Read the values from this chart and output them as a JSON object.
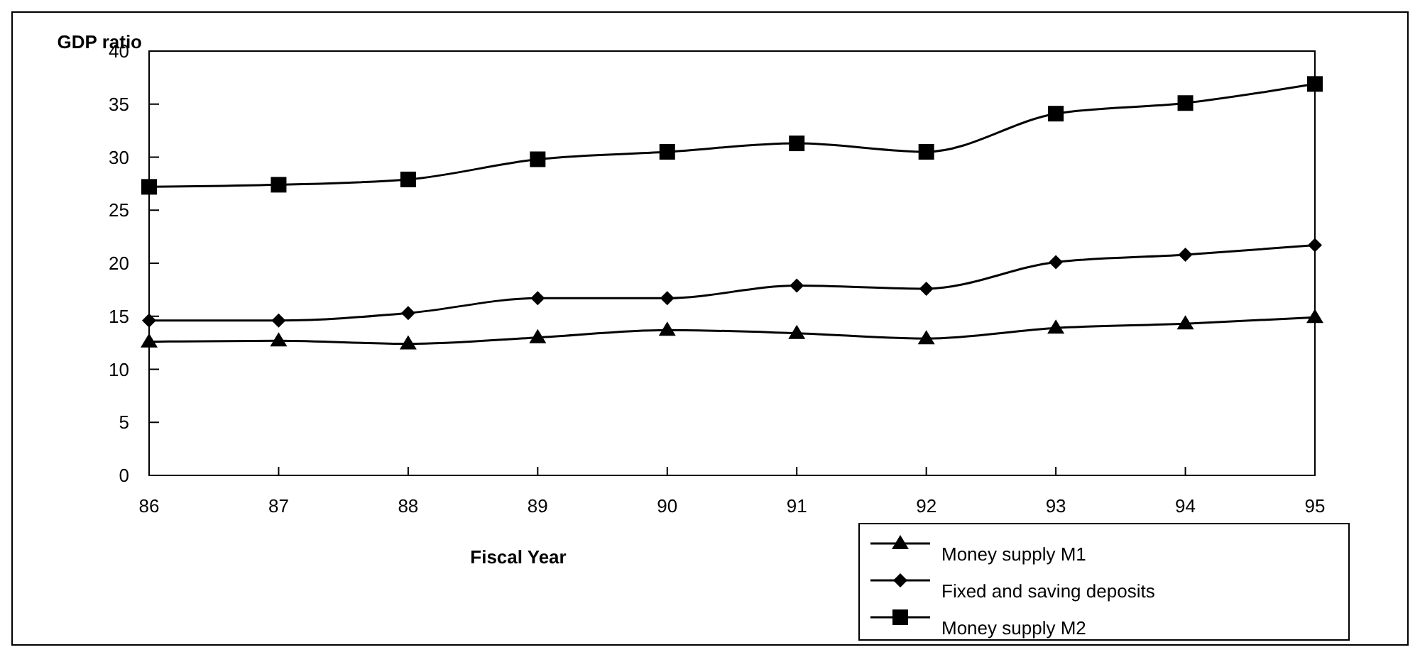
{
  "chart_data": {
    "type": "line",
    "xlabel": "Fiscal Year",
    "ylabel": "GDP ratio",
    "categories": [
      "86",
      "87",
      "88",
      "89",
      "90",
      "91",
      "92",
      "93",
      "94",
      "95"
    ],
    "ylim": [
      0,
      40
    ],
    "yticks": [
      0,
      5,
      10,
      15,
      20,
      25,
      30,
      35,
      40
    ],
    "grid": false,
    "legend": "bottom right",
    "line_style": "solid",
    "series": [
      {
        "name": "Money supply M1",
        "color": "#000000",
        "marker": "triangle",
        "values": [
          12.6,
          12.7,
          12.4,
          13.0,
          13.7,
          13.4,
          12.9,
          13.9,
          14.3,
          14.9
        ]
      },
      {
        "name": "Fixed and saving deposits",
        "color": "#000000",
        "marker": "diamond",
        "values": [
          14.6,
          14.6,
          15.3,
          16.7,
          16.7,
          17.9,
          17.6,
          20.1,
          20.8,
          21.7
        ]
      },
      {
        "name": "Money supply M2",
        "color": "#000000",
        "marker": "square",
        "values": [
          27.2,
          27.4,
          27.9,
          29.8,
          30.5,
          31.3,
          30.5,
          34.1,
          35.1,
          36.9
        ]
      }
    ]
  }
}
